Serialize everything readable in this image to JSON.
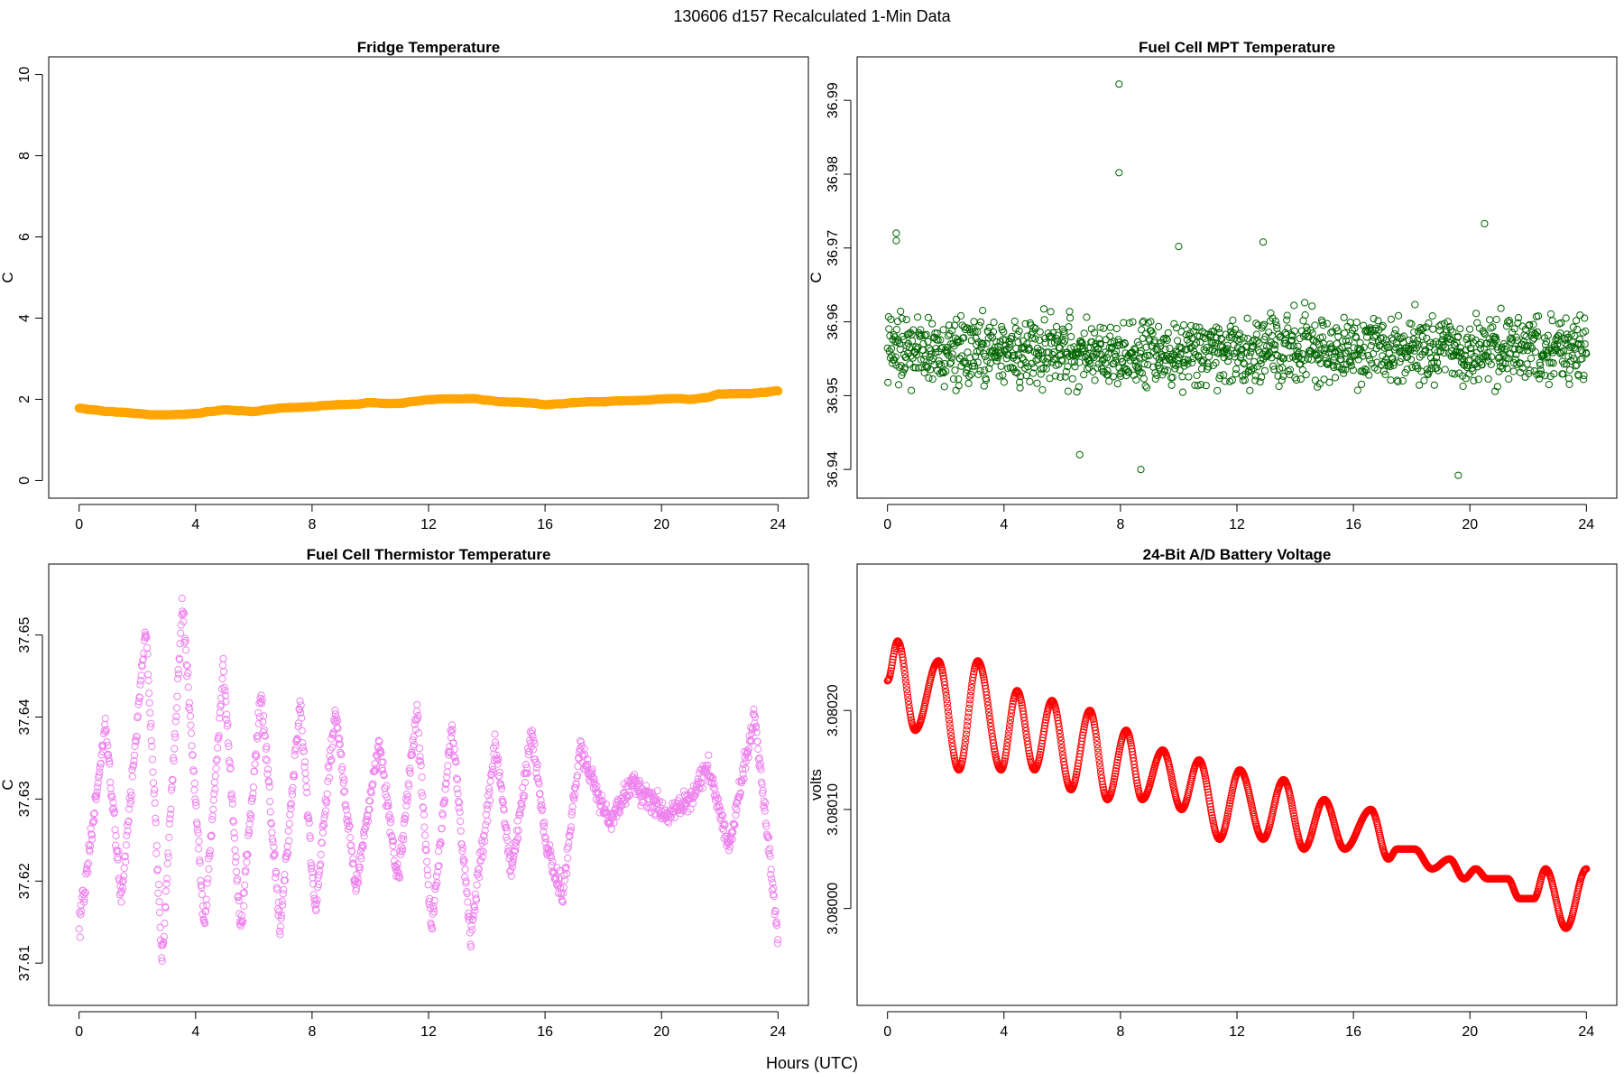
{
  "figure": {
    "title": "130606   d157   Recalculated 1-Min Data",
    "xlabel": "Hours (UTC)"
  },
  "chart_data": [
    {
      "type": "scatter",
      "title": "Fridge Temperature",
      "xlabel": "Hours (UTC)",
      "ylabel": "C",
      "xlim": [
        0,
        24
      ],
      "ylim": [
        0,
        10
      ],
      "xticks": [
        0,
        4,
        8,
        12,
        16,
        20,
        24
      ],
      "yticks": [
        0,
        2,
        4,
        6,
        8,
        10
      ],
      "ytick_labels": [
        "0",
        "2",
        "4",
        "6",
        "8",
        "10"
      ],
      "color": "#ffa500",
      "marker": "filled-dense",
      "pattern": "smooth",
      "n_points": 1440,
      "x": [
        0,
        0.5,
        1,
        1.5,
        2,
        2.5,
        3,
        3.5,
        4,
        4.5,
        5,
        5.5,
        6,
        6.5,
        7,
        7.5,
        8,
        8.5,
        9,
        9.5,
        10,
        10.5,
        11,
        11.5,
        12,
        12.5,
        13,
        13.5,
        14,
        14.5,
        15,
        15.5,
        16,
        16.5,
        17,
        17.5,
        18,
        18.5,
        19,
        19.5,
        20,
        20.5,
        21,
        21.5,
        22,
        22.5,
        23,
        23.5,
        24
      ],
      "y": [
        1.78,
        1.74,
        1.7,
        1.68,
        1.65,
        1.62,
        1.62,
        1.63,
        1.65,
        1.7,
        1.74,
        1.72,
        1.7,
        1.75,
        1.79,
        1.8,
        1.82,
        1.85,
        1.87,
        1.88,
        1.92,
        1.9,
        1.9,
        1.95,
        1.99,
        2.01,
        2.01,
        2.02,
        1.98,
        1.94,
        1.93,
        1.91,
        1.87,
        1.89,
        1.92,
        1.94,
        1.94,
        1.96,
        1.97,
        1.98,
        2.01,
        2.02,
        2.0,
        2.04,
        2.13,
        2.14,
        2.14,
        2.17,
        2.21
      ]
    },
    {
      "type": "scatter",
      "title": "Fuel Cell MPT Temperature",
      "xlabel": "Hours (UTC)",
      "ylabel": "C",
      "xlim": [
        0,
        24
      ],
      "ylim": [
        36.9385,
        36.9935
      ],
      "xticks": [
        0,
        4,
        8,
        12,
        16,
        20,
        24
      ],
      "yticks": [
        36.94,
        36.95,
        36.96,
        36.97,
        36.98,
        36.99
      ],
      "ytick_labels": [
        "36.94",
        "36.95",
        "36.96",
        "36.97",
        "36.98",
        "36.99"
      ],
      "color": "#006400",
      "marker": "open-circle",
      "pattern": "noise",
      "n_points": 1440,
      "x": [
        0,
        24
      ],
      "y": [
        36.956,
        36.956
      ],
      "spread": 0.0045,
      "outliers": [
        [
          0.3,
          36.972
        ],
        [
          0.3,
          36.971
        ],
        [
          7.95,
          36.9922
        ],
        [
          7.95,
          36.9802
        ],
        [
          20.5,
          36.9733
        ],
        [
          10.0,
          36.9702
        ],
        [
          12.9,
          36.9708
        ],
        [
          8.7,
          36.94
        ],
        [
          19.6,
          36.9392
        ],
        [
          6.6,
          36.942
        ]
      ]
    },
    {
      "type": "scatter",
      "title": "Fuel Cell Thermistor Temperature",
      "xlabel": "Hours (UTC)",
      "ylabel": "C",
      "xlim": [
        0,
        24
      ],
      "ylim": [
        37.607,
        37.6565
      ],
      "xticks": [
        0,
        4,
        8,
        12,
        16,
        20,
        24
      ],
      "yticks": [
        37.61,
        37.62,
        37.63,
        37.64,
        37.65
      ],
      "ytick_labels": [
        "37.61",
        "37.62",
        "37.63",
        "37.64",
        "37.65"
      ],
      "color": "#ee82ee",
      "marker": "open-circle",
      "pattern": "sawtooth",
      "n_points": 1440,
      "cycles": [
        [
          0,
          0.9,
          37.614,
          37.639
        ],
        [
          0.9,
          1.45,
          37.639,
          37.618
        ],
        [
          1.45,
          2.3,
          37.618,
          37.651
        ],
        [
          2.3,
          2.85,
          37.651,
          37.61
        ],
        [
          2.85,
          3.55,
          37.61,
          37.654
        ],
        [
          3.55,
          4.3,
          37.654,
          37.614
        ],
        [
          4.3,
          4.95,
          37.614,
          37.646
        ],
        [
          4.95,
          5.55,
          37.646,
          37.614
        ],
        [
          5.55,
          6.25,
          37.614,
          37.643
        ],
        [
          6.25,
          6.9,
          37.643,
          37.614
        ],
        [
          6.9,
          7.6,
          37.614,
          37.642
        ],
        [
          7.6,
          8.1,
          37.642,
          37.616
        ],
        [
          8.1,
          8.8,
          37.616,
          37.641
        ],
        [
          8.8,
          9.5,
          37.641,
          37.619
        ],
        [
          9.5,
          10.3,
          37.619,
          37.637
        ],
        [
          10.3,
          10.95,
          37.637,
          37.62
        ],
        [
          10.95,
          11.6,
          37.62,
          37.641
        ],
        [
          11.6,
          12.1,
          37.641,
          37.614
        ],
        [
          12.1,
          12.8,
          37.614,
          37.639
        ],
        [
          12.8,
          13.45,
          37.639,
          37.613
        ],
        [
          13.45,
          14.3,
          37.613,
          37.637
        ],
        [
          14.3,
          14.85,
          37.637,
          37.621
        ],
        [
          14.85,
          15.55,
          37.621,
          37.638
        ],
        [
          15.55,
          16.05,
          37.638,
          37.624
        ],
        [
          16.05,
          16.6,
          37.624,
          37.618
        ],
        [
          16.6,
          17.2,
          37.618,
          37.636
        ],
        [
          17.2,
          18.2,
          37.636,
          37.627
        ],
        [
          18.2,
          19.0,
          37.627,
          37.632
        ],
        [
          19.0,
          20.2,
          37.632,
          37.628
        ],
        [
          20.2,
          21.0,
          37.628,
          37.63
        ],
        [
          21.0,
          21.6,
          37.63,
          37.634
        ],
        [
          21.6,
          22.3,
          37.634,
          37.624
        ],
        [
          22.3,
          23.2,
          37.624,
          37.64
        ],
        [
          23.2,
          24.0,
          37.64,
          37.613
        ]
      ],
      "spread": 0.0022
    },
    {
      "type": "scatter",
      "title": "24-Bit A/D Battery Voltage",
      "xlabel": "Hours (UTC)",
      "ylabel": "volts",
      "xlim": [
        0,
        24
      ],
      "ylim": [
        3.07992,
        3.08033
      ],
      "xticks": [
        0,
        4,
        8,
        12,
        16,
        20,
        24
      ],
      "yticks": [
        3.08,
        3.0801,
        3.0802
      ],
      "ytick_labels": [
        "3.08000",
        "3.08010",
        "3.08020"
      ],
      "color": "#ff0000",
      "marker": "open-circle",
      "pattern": "smooth",
      "n_points": 1440,
      "x": [
        0,
        0.35,
        0.95,
        1.75,
        2.45,
        3.1,
        3.9,
        4.45,
        5.05,
        5.65,
        6.3,
        6.95,
        7.55,
        8.2,
        8.75,
        9.45,
        10.1,
        10.7,
        11.4,
        12.1,
        12.9,
        13.6,
        14.3,
        15.0,
        15.7,
        16.6,
        17.2,
        17.5,
        17.8,
        18.1,
        18.7,
        19.3,
        19.8,
        20.2,
        20.6,
        21.3,
        21.7,
        22.2,
        22.6,
        23.3,
        24.0
      ],
      "y": [
        3.08023,
        3.08027,
        3.08018,
        3.08025,
        3.08014,
        3.08025,
        3.08014,
        3.08022,
        3.08014,
        3.08021,
        3.08012,
        3.0802,
        3.08011,
        3.08018,
        3.08011,
        3.08016,
        3.0801,
        3.08015,
        3.08007,
        3.08014,
        3.08007,
        3.08013,
        3.08006,
        3.08011,
        3.08006,
        3.0801,
        3.08005,
        3.08006,
        3.08006,
        3.08006,
        3.08004,
        3.08005,
        3.08003,
        3.08004,
        3.08003,
        3.08003,
        3.08001,
        3.08001,
        3.08004,
        3.07998,
        3.08004
      ]
    }
  ]
}
